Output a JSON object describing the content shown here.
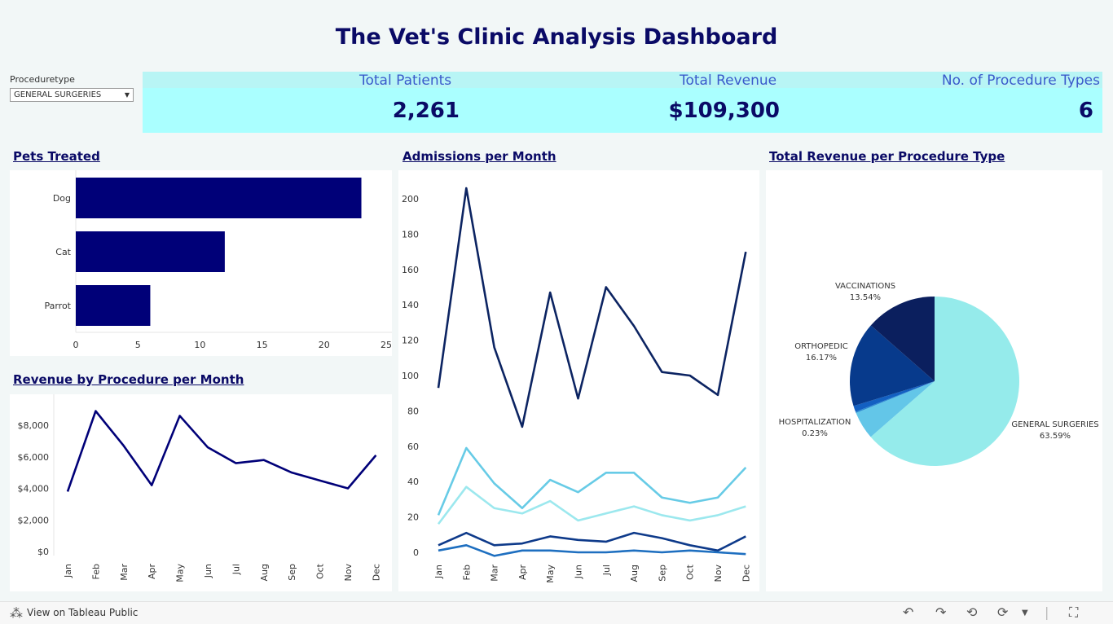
{
  "title": "The Vet's Clinic Analysis Dashboard",
  "filter": {
    "label": "Proceduretype",
    "value": "GENERAL SURGERIES"
  },
  "kpis": [
    {
      "label": "Total Patients",
      "value": "2,261"
    },
    {
      "label": "Total Revenue",
      "value": "$109,300"
    },
    {
      "label": "No. of Procedure Types",
      "value": "6"
    }
  ],
  "colors": {
    "navy": "#000078",
    "dark": "#0c2462",
    "accent": "#0a0a66"
  },
  "pets_chart": {
    "title": "Pets Treated",
    "chart_data": {
      "type": "bar",
      "orientation": "horizontal",
      "categories": [
        "Dog",
        "Cat",
        "Parrot"
      ],
      "values": [
        23,
        12,
        6
      ],
      "xlim": [
        0,
        25
      ],
      "ticks": [
        0,
        5,
        10,
        15,
        20,
        25
      ]
    }
  },
  "revenue_chart": {
    "title": "Revenue by Procedure per Month",
    "chart_data": {
      "type": "line",
      "categories": [
        "Jan",
        "Feb",
        "Mar",
        "Apr",
        "May",
        "Jun",
        "Jul",
        "Aug",
        "Sep",
        "Oct",
        "Nov",
        "Dec"
      ],
      "values": [
        3800,
        8900,
        6700,
        4200,
        8600,
        6600,
        5600,
        5800,
        5000,
        4500,
        4000,
        6100
      ],
      "ylim": [
        0,
        9500
      ],
      "ticks": [
        0,
        2000,
        4000,
        6000,
        8000
      ],
      "tick_labels": [
        "$0",
        "$2,000",
        "$4,000",
        "$6,000",
        "$8,000"
      ]
    }
  },
  "admissions_chart": {
    "title": "Admissions per Month",
    "chart_data": {
      "type": "line",
      "categories": [
        "Jan",
        "Feb",
        "Mar",
        "Apr",
        "May",
        "Jun",
        "Jul",
        "Aug",
        "Sep",
        "Oct",
        "Nov",
        "Dec"
      ],
      "ylim": [
        -4,
        215
      ],
      "ticks": [
        0,
        20,
        40,
        60,
        80,
        100,
        120,
        140,
        160,
        180,
        200
      ],
      "series": [
        {
          "color": "#0c2462",
          "values": [
            93,
            206,
            116,
            71,
            147,
            87,
            150,
            128,
            102,
            100,
            89,
            170
          ]
        },
        {
          "color": "#67cbe6",
          "values": [
            21,
            59,
            39,
            25,
            41,
            34,
            45,
            45,
            31,
            28,
            31,
            48
          ]
        },
        {
          "color": "#9ce8ee",
          "values": [
            16,
            37,
            25,
            22,
            29,
            18,
            22,
            26,
            21,
            18,
            21,
            26
          ]
        },
        {
          "color": "#0e3a8a",
          "values": [
            4,
            11,
            4,
            5,
            9,
            7,
            6,
            11,
            8,
            4,
            1,
            9
          ]
        },
        {
          "color": "#1e6fc0",
          "values": [
            1,
            4,
            -2,
            1,
            1,
            0,
            0,
            1,
            0,
            1,
            0,
            -1
          ]
        }
      ]
    }
  },
  "pie_chart": {
    "title": "Total Revenue per Procedure Type",
    "chart_data": {
      "type": "pie",
      "slices": [
        {
          "name": "GENERAL SURGERIES",
          "pct_label": "63.59%",
          "value": 63.59,
          "color": "#95ebeb"
        },
        {
          "name": "",
          "pct_label": "",
          "value": 5.3,
          "color": "#63c6e8"
        },
        {
          "name": "HOSPITALIZATION",
          "pct_label": "0.23%",
          "value": 0.23,
          "color": "#2a8ad2"
        },
        {
          "name": "",
          "pct_label": "",
          "value": 1.17,
          "color": "#1360c2"
        },
        {
          "name": "ORTHOPEDIC",
          "pct_label": "16.17%",
          "value": 16.17,
          "color": "#073a8c"
        },
        {
          "name": "VACCINATIONS",
          "pct_label": "13.54%",
          "value": 13.54,
          "color": "#0b1f5e"
        }
      ]
    }
  },
  "footer": {
    "link": "View on Tableau Public"
  }
}
